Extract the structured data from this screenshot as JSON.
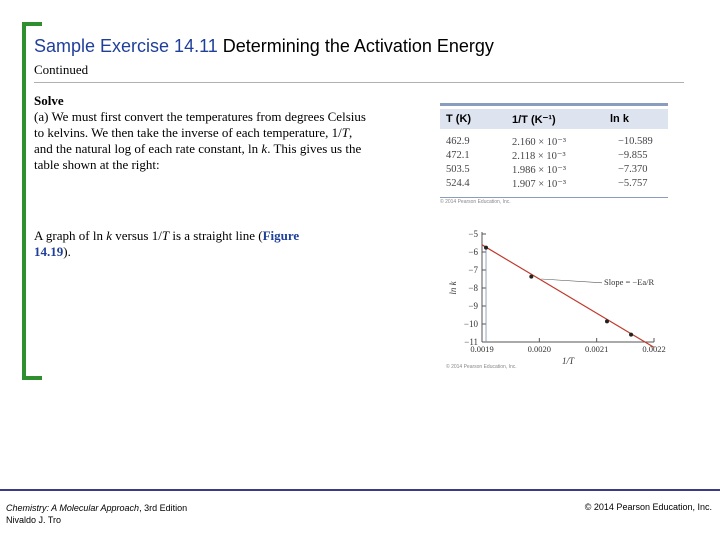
{
  "header": {
    "title_prefix": "Sample Exercise 14.11",
    "title_rest": "Determining the Activation Energy",
    "subtitle": "Continued"
  },
  "solve": {
    "heading": "Solve",
    "part_label": "(a)",
    "text_1": " We must first convert the temperatures from degrees Celsius to kelvins. We then take the inverse of each temperature, 1/",
    "var_T": "T",
    "text_2": ", and the natural log of each rate constant, ln ",
    "var_k": "k",
    "text_3": ". This gives us the table shown at the right:"
  },
  "graph_text": {
    "text_1": "A graph of ln ",
    "var_k": "k",
    "text_2": " versus 1/",
    "var_T": "T",
    "text_3": " is a straight line (",
    "figure_ref": "Figure 14.19",
    "text_4": ")."
  },
  "table": {
    "headers": [
      "T (K)",
      "1/T (K⁻¹)",
      "ln k"
    ],
    "rows": [
      [
        "462.9",
        "2.160 × 10⁻³",
        "−10.589"
      ],
      [
        "472.1",
        "2.118 × 10⁻³",
        "−9.855"
      ],
      [
        "503.5",
        "1.986 × 10⁻³",
        "−7.370"
      ],
      [
        "524.4",
        "1.907 × 10⁻³",
        "−5.757"
      ]
    ],
    "credit": "© 2014 Pearson Education, Inc."
  },
  "chart_data": {
    "type": "scatter",
    "x": [
      0.001907,
      0.001986,
      0.002118,
      0.00216
    ],
    "y": [
      -5.757,
      -7.37,
      -9.855,
      -10.589
    ],
    "xlabel": "1/T",
    "ylabel": "ln k",
    "xlim": [
      0.0019,
      0.0022
    ],
    "ylim": [
      -11,
      -5
    ],
    "xticks": [
      0.0019,
      0.002,
      0.0021,
      0.0022
    ],
    "xtick_labels": [
      "0.0019",
      "0.0020",
      "0.0021",
      "0.0022"
    ],
    "yticks": [
      -5,
      -6,
      -7,
      -8,
      -9,
      -10,
      -11
    ],
    "ytick_labels": [
      "−5",
      "−6",
      "−7",
      "−8",
      "−9",
      "−10",
      "−11"
    ],
    "annotation": "Slope = −Ea/R",
    "fit_line": {
      "slope": -19000,
      "intercept": 30.5
    },
    "grid": false,
    "line_color": "#c0392b",
    "point_color": "#222222",
    "credit": "© 2014 Pearson Education, Inc."
  },
  "footer": {
    "book": "Chemistry: A Molecular Approach",
    "edition": ", 3rd Edition",
    "author": "Nivaldo J. Tro",
    "copyright": "© 2014 Pearson Education, Inc."
  }
}
